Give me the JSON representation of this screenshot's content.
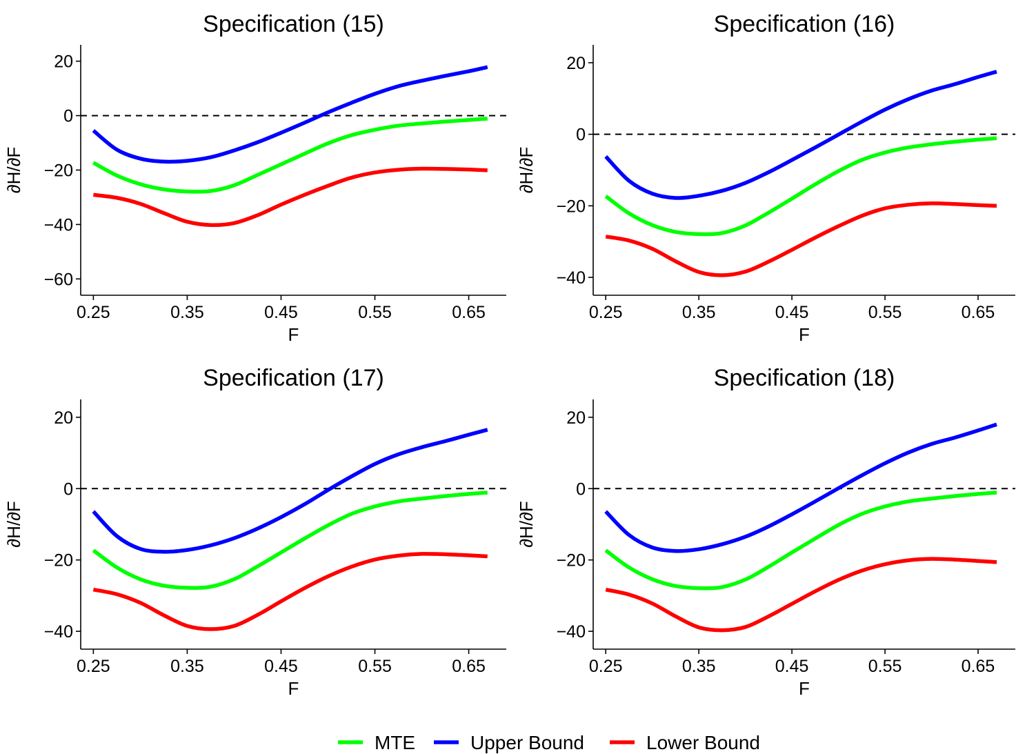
{
  "legend": [
    {
      "name": "MTE",
      "color": "#00ff00"
    },
    {
      "name": "Upper Bound",
      "color": "#0000ff"
    },
    {
      "name": "Lower Bound",
      "color": "#ff0000"
    }
  ],
  "chart_data": [
    {
      "type": "line",
      "title": "Specification (15)",
      "xlabel": "F",
      "ylabel": "∂H/∂F",
      "xlim": [
        0.2365,
        0.69
      ],
      "ylim": [
        -66,
        26
      ],
      "xticks": [
        0.25,
        0.35,
        0.45,
        0.55,
        0.65
      ],
      "xtick_labels": [
        "0.25",
        "0.35",
        "0.45",
        "0.55",
        "0.65"
      ],
      "yticks": [
        -60,
        -40,
        -20,
        0,
        20
      ],
      "ytick_labels": [
        "−60",
        "−40",
        "−20",
        "0",
        "20"
      ],
      "reference_line": {
        "y": 0,
        "style": "dashed"
      },
      "x": [
        0.25,
        0.275,
        0.3,
        0.325,
        0.35,
        0.375,
        0.4,
        0.425,
        0.45,
        0.475,
        0.5,
        0.525,
        0.55,
        0.575,
        0.6,
        0.625,
        0.65,
        0.67
      ],
      "series": [
        {
          "name": "MTE",
          "color": "#00ff00",
          "values": [
            -17.3,
            -22.0,
            -25.2,
            -27.1,
            -27.9,
            -27.7,
            -25.6,
            -21.8,
            -17.9,
            -14.0,
            -10.2,
            -7.2,
            -5.2,
            -3.7,
            -2.9,
            -2.2,
            -1.6,
            -1.1
          ]
        },
        {
          "name": "Upper Bound",
          "color": "#0000ff",
          "values": [
            -5.5,
            -12.5,
            -15.8,
            -16.9,
            -16.6,
            -15.3,
            -12.8,
            -9.8,
            -6.3,
            -2.6,
            1.2,
            4.7,
            8.0,
            10.8,
            12.8,
            14.6,
            16.3,
            17.8
          ]
        },
        {
          "name": "Lower Bound",
          "color": "#ff0000",
          "values": [
            -29.1,
            -30.2,
            -32.4,
            -35.8,
            -39.0,
            -40.2,
            -39.5,
            -36.6,
            -32.7,
            -29.1,
            -25.8,
            -22.8,
            -20.9,
            -19.9,
            -19.5,
            -19.6,
            -19.8,
            -20.1
          ]
        }
      ]
    },
    {
      "type": "line",
      "title": "Specification (16)",
      "xlabel": "F",
      "ylabel": "∂H/∂F",
      "xlim": [
        0.2365,
        0.69
      ],
      "ylim": [
        -45,
        25
      ],
      "xticks": [
        0.25,
        0.35,
        0.45,
        0.55,
        0.65
      ],
      "xtick_labels": [
        "0.25",
        "0.35",
        "0.45",
        "0.55",
        "0.65"
      ],
      "yticks": [
        -40,
        -20,
        0,
        20
      ],
      "ytick_labels": [
        "−40",
        "−20",
        "0",
        "20"
      ],
      "reference_line": {
        "y": 0,
        "style": "dashed"
      },
      "x": [
        0.25,
        0.275,
        0.3,
        0.325,
        0.35,
        0.375,
        0.4,
        0.425,
        0.45,
        0.475,
        0.5,
        0.525,
        0.55,
        0.575,
        0.6,
        0.625,
        0.65,
        0.67
      ],
      "series": [
        {
          "name": "MTE",
          "color": "#00ff00",
          "values": [
            -17.3,
            -22.1,
            -25.4,
            -27.3,
            -27.9,
            -27.6,
            -25.5,
            -21.9,
            -18.0,
            -14.0,
            -10.3,
            -7.2,
            -5.1,
            -3.7,
            -2.8,
            -2.1,
            -1.5,
            -1.1
          ]
        },
        {
          "name": "Upper Bound",
          "color": "#0000ff",
          "values": [
            -6.2,
            -13.0,
            -16.6,
            -17.8,
            -17.2,
            -15.8,
            -13.6,
            -10.6,
            -7.2,
            -3.7,
            -0.1,
            3.5,
            6.9,
            9.8,
            12.2,
            14.0,
            16.0,
            17.5
          ]
        },
        {
          "name": "Lower Bound",
          "color": "#ff0000",
          "values": [
            -28.6,
            -29.7,
            -32.0,
            -35.5,
            -38.5,
            -39.4,
            -38.4,
            -35.6,
            -32.3,
            -28.9,
            -25.7,
            -22.8,
            -20.7,
            -19.7,
            -19.3,
            -19.5,
            -19.8,
            -20.0
          ]
        }
      ]
    },
    {
      "type": "line",
      "title": "Specification (17)",
      "xlabel": "F",
      "ylabel": "∂H/∂F",
      "xlim": [
        0.2365,
        0.69
      ],
      "ylim": [
        -45,
        25
      ],
      "xticks": [
        0.25,
        0.35,
        0.45,
        0.55,
        0.65
      ],
      "xtick_labels": [
        "0.25",
        "0.35",
        "0.45",
        "0.55",
        "0.65"
      ],
      "yticks": [
        -40,
        -20,
        0,
        20
      ],
      "ytick_labels": [
        "−40",
        "−20",
        "0",
        "20"
      ],
      "reference_line": {
        "y": 0,
        "style": "dashed"
      },
      "x": [
        0.25,
        0.275,
        0.3,
        0.325,
        0.35,
        0.375,
        0.4,
        0.425,
        0.45,
        0.475,
        0.5,
        0.525,
        0.55,
        0.575,
        0.6,
        0.625,
        0.65,
        0.67
      ],
      "series": [
        {
          "name": "MTE",
          "color": "#00ff00",
          "values": [
            -17.3,
            -22.1,
            -25.4,
            -27.2,
            -27.8,
            -27.5,
            -25.4,
            -21.8,
            -17.9,
            -14.0,
            -10.3,
            -7.1,
            -5.0,
            -3.6,
            -2.8,
            -2.1,
            -1.5,
            -1.1
          ]
        },
        {
          "name": "Upper Bound",
          "color": "#0000ff",
          "values": [
            -6.4,
            -13.3,
            -16.9,
            -17.7,
            -17.2,
            -15.9,
            -13.9,
            -11.2,
            -8.0,
            -4.4,
            -0.4,
            3.4,
            6.9,
            9.6,
            11.6,
            13.3,
            15.1,
            16.5
          ]
        },
        {
          "name": "Lower Bound",
          "color": "#ff0000",
          "values": [
            -28.3,
            -29.6,
            -32.0,
            -35.5,
            -38.5,
            -39.4,
            -38.5,
            -35.4,
            -31.6,
            -27.9,
            -24.6,
            -21.9,
            -19.9,
            -18.8,
            -18.3,
            -18.4,
            -18.7,
            -19.0
          ]
        }
      ]
    },
    {
      "type": "line",
      "title": "Specification (18)",
      "xlabel": "F",
      "ylabel": "∂H/∂F",
      "xlim": [
        0.2365,
        0.69
      ],
      "ylim": [
        -45,
        25
      ],
      "xticks": [
        0.25,
        0.35,
        0.45,
        0.55,
        0.65
      ],
      "xtick_labels": [
        "0.25",
        "0.35",
        "0.45",
        "0.55",
        "0.65"
      ],
      "yticks": [
        -40,
        -20,
        0,
        20
      ],
      "ytick_labels": [
        "−40",
        "−20",
        "0",
        "20"
      ],
      "reference_line": {
        "y": 0,
        "style": "dashed"
      },
      "x": [
        0.25,
        0.275,
        0.3,
        0.325,
        0.35,
        0.375,
        0.4,
        0.425,
        0.45,
        0.475,
        0.5,
        0.525,
        0.55,
        0.575,
        0.6,
        0.625,
        0.65,
        0.67
      ],
      "series": [
        {
          "name": "MTE",
          "color": "#00ff00",
          "values": [
            -17.3,
            -22.1,
            -25.4,
            -27.3,
            -27.9,
            -27.6,
            -25.5,
            -21.9,
            -17.9,
            -14.0,
            -10.2,
            -7.1,
            -5.0,
            -3.6,
            -2.8,
            -2.1,
            -1.5,
            -1.1
          ]
        },
        {
          "name": "Upper Bound",
          "color": "#0000ff",
          "values": [
            -6.4,
            -13.0,
            -16.5,
            -17.5,
            -17.0,
            -15.6,
            -13.5,
            -10.6,
            -7.2,
            -3.6,
            0.1,
            3.7,
            7.1,
            10.1,
            12.5,
            14.3,
            16.3,
            18.0
          ]
        },
        {
          "name": "Lower Bound",
          "color": "#ff0000",
          "values": [
            -28.3,
            -29.7,
            -32.2,
            -35.8,
            -38.9,
            -39.7,
            -38.8,
            -35.8,
            -32.3,
            -28.8,
            -25.6,
            -23.0,
            -21.2,
            -20.1,
            -19.7,
            -19.9,
            -20.3,
            -20.6
          ]
        }
      ]
    }
  ]
}
